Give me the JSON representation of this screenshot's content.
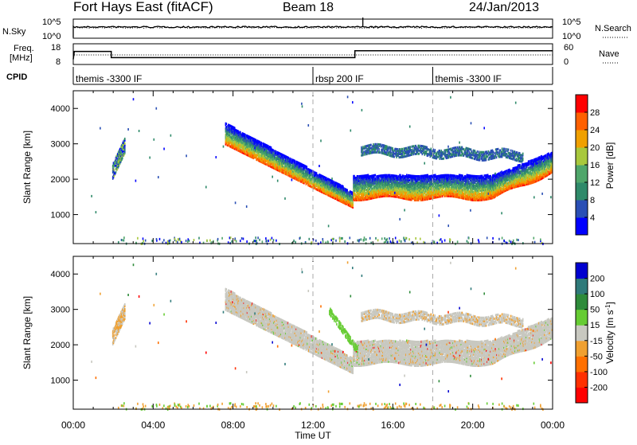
{
  "header": {
    "station": "Fort Hays East (fitACF)",
    "beam": "Beam 18",
    "date": "24/Jan/2013"
  },
  "top_panels": {
    "nsky_label": "N.Sky",
    "nsky_ticks": [
      "10^5",
      "10^0"
    ],
    "nsearch_label": "N.Search",
    "nsearch_ticks": [
      "10^5",
      "10^0"
    ],
    "freq_label_1": "Freq.",
    "freq_label_2": "[MHz]",
    "freq_ticks": [
      "18",
      "8"
    ],
    "nave_label": "Nave",
    "nave_ticks": [
      "60",
      "0"
    ],
    "cpid_label": "CPID",
    "cpid_segments": [
      {
        "label": "themis -3300 IF",
        "start_hour": 0
      },
      {
        "label": "rbsp 200 IF",
        "start_hour": 12
      },
      {
        "label": "themis -3300 IF",
        "start_hour": 18
      }
    ]
  },
  "colors": {
    "power_scale": [
      "#0000ff",
      "#2a4fb5",
      "#2f8a6a",
      "#4fa66a",
      "#a8c83c",
      "#f0a000",
      "#ff6000",
      "#ff0000"
    ],
    "velocity_scale": [
      "#0000d0",
      "#2f7a7a",
      "#2e8b3a",
      "#66cc33",
      "#c8c8c0",
      "#f0a030",
      "#ff7000",
      "#ff3000",
      "#ff0000"
    ],
    "ground_scatter": "#c8c8c0"
  },
  "chart_data": [
    {
      "type": "heatmap",
      "name": "power-panel",
      "xlabel": "Time UT",
      "ylabel": "Slant Range [km]",
      "xlim": [
        0,
        24
      ],
      "ylim": [
        180,
        4500
      ],
      "x_ticks": [
        "00:00",
        "04:00",
        "08:00",
        "12:00",
        "16:00",
        "20:00",
        "00:00"
      ],
      "y_ticks": [
        1000,
        2000,
        3000,
        4000
      ],
      "colorbar_label": "Power [dB]",
      "colorbar_ticks": [
        "28",
        "24",
        "20",
        "16",
        "12",
        "8",
        "4"
      ],
      "colorbar_range": [
        0,
        30
      ]
    },
    {
      "type": "heatmap",
      "name": "velocity-panel",
      "xlabel": "Time UT",
      "ylabel": "Slant Range [km]",
      "xlim": [
        0,
        24
      ],
      "ylim": [
        180,
        4500
      ],
      "x_ticks": [
        "00:00",
        "04:00",
        "08:00",
        "12:00",
        "16:00",
        "20:00",
        "00:00"
      ],
      "y_ticks": [
        1000,
        2000,
        3000,
        4000
      ],
      "colorbar_label": "Velocity [m s^-1]",
      "colorbar_ticks": [
        "200",
        "100",
        "50",
        "15",
        "-15",
        "-50",
        "-100",
        "-200"
      ],
      "colorbar_range": [
        -250,
        250
      ]
    }
  ],
  "xaxis_title": "Time UT"
}
